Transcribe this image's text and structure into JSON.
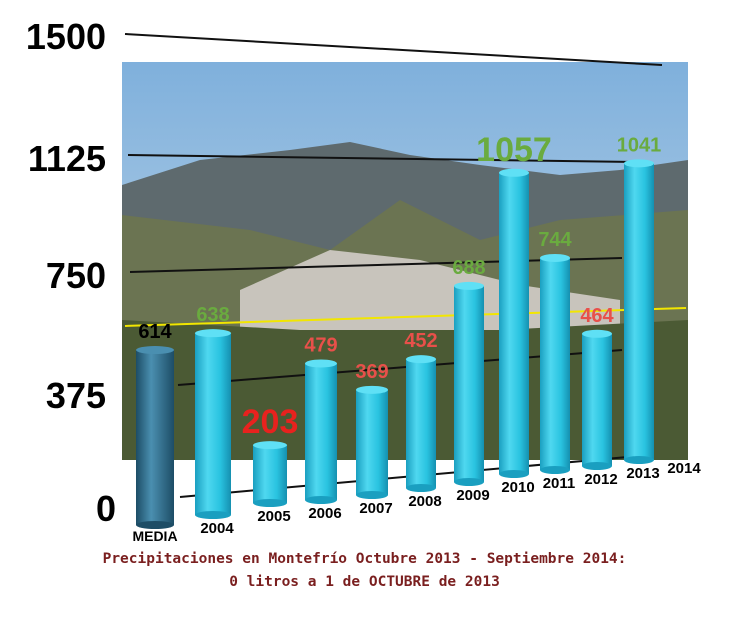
{
  "chart_data": {
    "type": "bar",
    "title": "Precipitaciones en Montefrío Octubre 2013 - Septiembre 2014:",
    "subtitle": "0 litros a 1 de OCTUBRE de 2013",
    "categories": [
      "MEDIA",
      "2004",
      "2005",
      "2006",
      "2007",
      "2008",
      "2009",
      "2010",
      "2011",
      "2012",
      "2013",
      "2014"
    ],
    "values": [
      614,
      638,
      203,
      479,
      369,
      452,
      688,
      1057,
      744,
      464,
      1041,
      null
    ],
    "data_labels": [
      "614",
      "638",
      "203",
      "479",
      "369",
      "452",
      "688",
      "1057",
      "744",
      "464",
      "1041",
      ""
    ],
    "yticks": [
      "0",
      "375",
      "750",
      "1125",
      "1500"
    ],
    "ylim": [
      0,
      1500
    ],
    "mean_line": 614,
    "grid": true,
    "colors": {
      "bar": "#29c3e0",
      "media_bar": "#2d6f8c",
      "above_mean": "#6aab3f",
      "below_mean": "#e8504a",
      "min_value": "#e8221e",
      "mean_line": "#f2e600",
      "caption": "#7a1f1f"
    }
  }
}
